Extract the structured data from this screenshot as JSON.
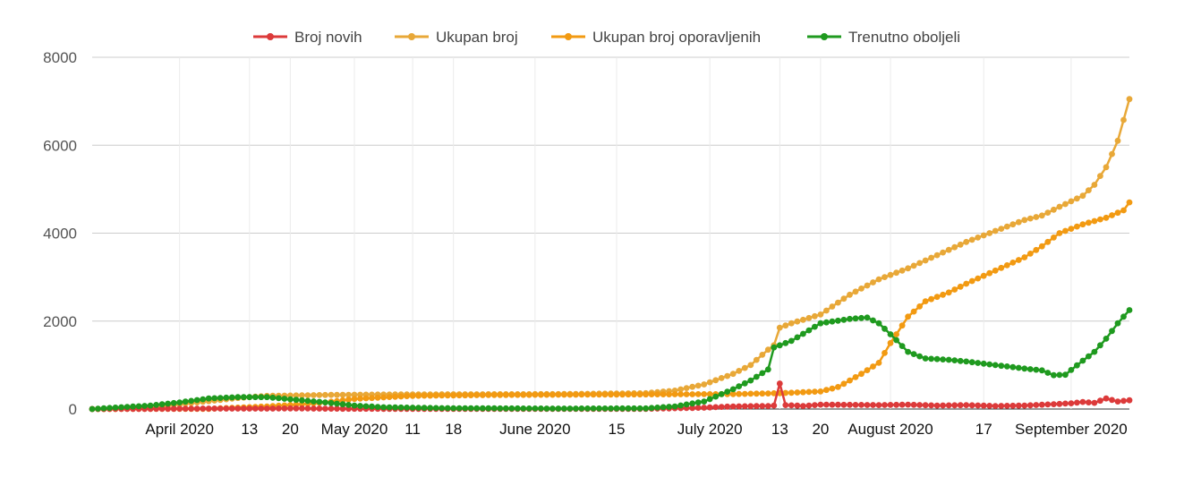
{
  "chart_data": {
    "type": "line",
    "legend_position": "top",
    "grid": true,
    "ylim": [
      0,
      8000
    ],
    "y_ticks": [
      "8000",
      "6000",
      "4000",
      "2000",
      "0"
    ],
    "x_range_days": [
      0,
      178
    ],
    "x_tick_labels": [
      {
        "day": 15,
        "label": "April 2020"
      },
      {
        "day": 27,
        "label": "13"
      },
      {
        "day": 34,
        "label": "20"
      },
      {
        "day": 45,
        "label": "May 2020"
      },
      {
        "day": 55,
        "label": "11"
      },
      {
        "day": 62,
        "label": "18"
      },
      {
        "day": 76,
        "label": "June 2020"
      },
      {
        "day": 90,
        "label": "15"
      },
      {
        "day": 106,
        "label": "July 2020"
      },
      {
        "day": 118,
        "label": "13"
      },
      {
        "day": 125,
        "label": "20"
      },
      {
        "day": 137,
        "label": "August 2020"
      },
      {
        "day": 153,
        "label": "17"
      },
      {
        "day": 168,
        "label": "September 2020"
      }
    ],
    "series": [
      {
        "name": "Broj novih",
        "color": "#dc3a3a",
        "points": [
          [
            0,
            0
          ],
          [
            10,
            5
          ],
          [
            20,
            10
          ],
          [
            30,
            10
          ],
          [
            35,
            15
          ],
          [
            40,
            8
          ],
          [
            50,
            5
          ],
          [
            60,
            3
          ],
          [
            80,
            2
          ],
          [
            95,
            5
          ],
          [
            105,
            30
          ],
          [
            110,
            60
          ],
          [
            116,
            70
          ],
          [
            117,
            80
          ],
          [
            118,
            580
          ],
          [
            119,
            90
          ],
          [
            122,
            70
          ],
          [
            125,
            100
          ],
          [
            130,
            95
          ],
          [
            135,
            90
          ],
          [
            140,
            100
          ],
          [
            145,
            80
          ],
          [
            150,
            90
          ],
          [
            155,
            70
          ],
          [
            160,
            80
          ],
          [
            165,
            110
          ],
          [
            168,
            130
          ],
          [
            170,
            160
          ],
          [
            172,
            140
          ],
          [
            174,
            240
          ],
          [
            176,
            170
          ],
          [
            178,
            200
          ]
        ]
      },
      {
        "name": "Ukupan broj",
        "color": "#e8a838",
        "points": [
          [
            0,
            0
          ],
          [
            10,
            40
          ],
          [
            18,
            150
          ],
          [
            25,
            250
          ],
          [
            30,
            300
          ],
          [
            40,
            320
          ],
          [
            50,
            330
          ],
          [
            60,
            335
          ],
          [
            80,
            340
          ],
          [
            95,
            360
          ],
          [
            100,
            420
          ],
          [
            105,
            560
          ],
          [
            110,
            800
          ],
          [
            113,
            1000
          ],
          [
            116,
            1350
          ],
          [
            117,
            1450
          ],
          [
            118,
            1850
          ],
          [
            120,
            1950
          ],
          [
            125,
            2150
          ],
          [
            130,
            2600
          ],
          [
            135,
            2950
          ],
          [
            140,
            3200
          ],
          [
            145,
            3500
          ],
          [
            150,
            3800
          ],
          [
            155,
            4050
          ],
          [
            160,
            4300
          ],
          [
            163,
            4400
          ],
          [
            166,
            4600
          ],
          [
            170,
            4850
          ],
          [
            172,
            5100
          ],
          [
            174,
            5500
          ],
          [
            176,
            6100
          ],
          [
            178,
            7050
          ]
        ]
      },
      {
        "name": "Ukupan broj oporavljenih",
        "color": "#f29a12",
        "points": [
          [
            0,
            0
          ],
          [
            20,
            5
          ],
          [
            30,
            60
          ],
          [
            35,
            100
          ],
          [
            40,
            150
          ],
          [
            45,
            230
          ],
          [
            55,
            300
          ],
          [
            70,
            320
          ],
          [
            90,
            330
          ],
          [
            110,
            340
          ],
          [
            118,
            360
          ],
          [
            125,
            400
          ],
          [
            128,
            500
          ],
          [
            132,
            800
          ],
          [
            135,
            1050
          ],
          [
            137,
            1500
          ],
          [
            140,
            2100
          ],
          [
            143,
            2450
          ],
          [
            147,
            2650
          ],
          [
            150,
            2850
          ],
          [
            155,
            3150
          ],
          [
            160,
            3450
          ],
          [
            163,
            3700
          ],
          [
            166,
            4000
          ],
          [
            170,
            4200
          ],
          [
            174,
            4350
          ],
          [
            177,
            4520
          ],
          [
            178,
            4700
          ]
        ]
      },
      {
        "name": "Trenutno oboljeli",
        "color": "#1f9a1f",
        "points": [
          [
            0,
            0
          ],
          [
            10,
            80
          ],
          [
            15,
            150
          ],
          [
            20,
            240
          ],
          [
            25,
            270
          ],
          [
            30,
            270
          ],
          [
            35,
            210
          ],
          [
            40,
            150
          ],
          [
            45,
            80
          ],
          [
            50,
            40
          ],
          [
            60,
            20
          ],
          [
            80,
            10
          ],
          [
            95,
            15
          ],
          [
            100,
            60
          ],
          [
            105,
            170
          ],
          [
            110,
            450
          ],
          [
            113,
            650
          ],
          [
            116,
            900
          ],
          [
            117,
            1400
          ],
          [
            118,
            1450
          ],
          [
            120,
            1550
          ],
          [
            125,
            1950
          ],
          [
            130,
            2050
          ],
          [
            133,
            2080
          ],
          [
            135,
            1950
          ],
          [
            137,
            1700
          ],
          [
            140,
            1300
          ],
          [
            143,
            1150
          ],
          [
            147,
            1120
          ],
          [
            150,
            1080
          ],
          [
            155,
            1000
          ],
          [
            160,
            920
          ],
          [
            163,
            880
          ],
          [
            165,
            770
          ],
          [
            167,
            780
          ],
          [
            170,
            1100
          ],
          [
            172,
            1300
          ],
          [
            174,
            1600
          ],
          [
            176,
            1950
          ],
          [
            178,
            2250
          ]
        ]
      }
    ]
  }
}
